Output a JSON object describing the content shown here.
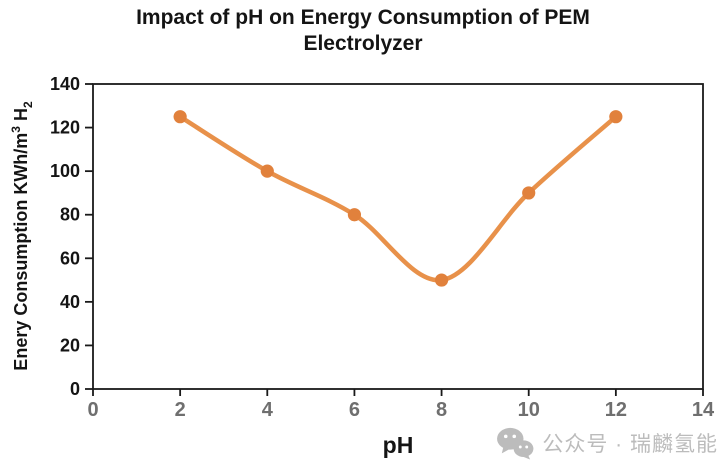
{
  "title": "Impact of pH on Energy Consumption of PEM Electrolyzer",
  "axes": {
    "xlabel": "pH",
    "ylabel_full": "Enery Consumption KWh/m³ H₂",
    "ylabel_parts": {
      "main": "Enery Consumption KWh/m",
      "sup": "3",
      "mid": " H",
      "sub": "2"
    }
  },
  "watermark": {
    "icon": "wechat-icon",
    "text": "公众号 · 瑞麟氢能",
    "color": "#bcbcbc"
  },
  "chart_data": {
    "type": "line",
    "title": "Impact of pH on Energy Consumption of PEM Electrolyzer",
    "xlabel": "pH",
    "ylabel": "Enery Consumption KWh/m³ H₂",
    "x": [
      2,
      4,
      6,
      8,
      10,
      12
    ],
    "y": [
      125,
      100,
      80,
      50,
      90,
      125
    ],
    "xlim": [
      0,
      14
    ],
    "ylim": [
      0,
      140
    ],
    "xticks": [
      0,
      2,
      4,
      6,
      8,
      10,
      12,
      14
    ],
    "yticks": [
      0,
      20,
      40,
      60,
      80,
      100,
      120,
      140
    ],
    "grid": false,
    "smooth": true,
    "legend": "none",
    "line_color": "#E8914A",
    "marker_color": "#E1813C",
    "axis_color": "#1a1a1a",
    "ytick_label_color": "#141414",
    "xtick_label_color": "#6f6f6f"
  }
}
